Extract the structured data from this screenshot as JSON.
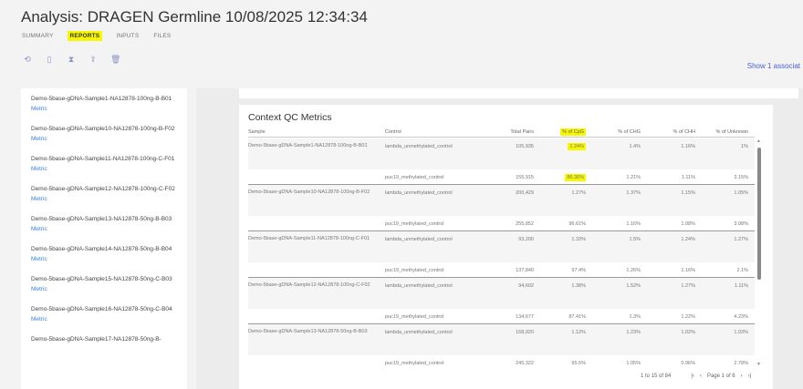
{
  "title": "Analysis: DRAGEN Germline 10/08/2025 12:34:34",
  "tabs": [
    {
      "label": "SUMMARY"
    },
    {
      "label": "REPORTS",
      "active": true
    },
    {
      "label": "INPUTS"
    },
    {
      "label": "FILES"
    }
  ],
  "toolbar_icons": [
    "rerun-icon",
    "file-icon",
    "hourglass-icon",
    "share-icon",
    "trash-icon"
  ],
  "show_link": "Show 1 associat",
  "sidebar": {
    "items": [
      {
        "name": "Demo-5base-gDNA-Sample1-NA12878-100ng-B-B01",
        "link": "Metric"
      },
      {
        "name": "Demo-5base-gDNA-Sample10-NA12878-100ng-B-F02",
        "link": "Metric"
      },
      {
        "name": "Demo-5base-gDNA-Sample11-NA12878-100ng-C-F01",
        "link": "Metric"
      },
      {
        "name": "Demo-5base-gDNA-Sample12-NA12878-100ng-C-F02",
        "link": "Metric"
      },
      {
        "name": "Demo-5base-gDNA-Sample13-NA12878-50ng-B-B03",
        "link": "Metric"
      },
      {
        "name": "Demo-5base-gDNA-Sample14-NA12878-50ng-B-B04",
        "link": "Metric"
      },
      {
        "name": "Demo-5base-gDNA-Sample15-NA12878-50ng-C-B03",
        "link": "Metric"
      },
      {
        "name": "Demo-5base-gDNA-Sample16-NA12878-50ng-C-B04",
        "link": "Metric"
      },
      {
        "name": "Demo-5base-gDNA-Sample17-NA12878-50ng-B-",
        "link": ""
      }
    ]
  },
  "table": {
    "title": "Context QC Metrics",
    "columns": [
      "Sample",
      "Control",
      "Total Pairs",
      "% of CpG",
      "% of CHG",
      "% of CHH",
      "% of Unknown"
    ],
    "rows": [
      {
        "sample": "Demo-5base-gDNA-Sample1-NA12878-100ng-B-B01",
        "control": "lambda_unmethylated_control",
        "total": "105,935",
        "cpg": "1.24%",
        "chg": "1.4%",
        "chh": "1.16%",
        "unk": "1%",
        "hl": true
      },
      {
        "sample": "",
        "control": "puc19_methylated_control",
        "total": "155,915",
        "cpg": "86.36%",
        "chg": "1.21%",
        "chh": "1.11%",
        "unk": "3.15%",
        "hl": true
      },
      {
        "sample": "Demo-5base-gDNA-Sample10-NA12878-100ng-B-F02",
        "control": "lambda_unmethylated_control",
        "total": "200,429",
        "cpg": "1.27%",
        "chg": "1.37%",
        "chh": "1.15%",
        "unk": "1.05%"
      },
      {
        "sample": "",
        "control": "puc19_methylated_control",
        "total": "255,852",
        "cpg": "96.61%",
        "chg": "1.16%",
        "chh": "1.08%",
        "unk": "3.08%"
      },
      {
        "sample": "Demo-5base-gDNA-Sample11-NA12878-100ng-C-F01",
        "control": "lambda_unmethylated_control",
        "total": "93,200",
        "cpg": "1.33%",
        "chg": "1.5%",
        "chh": "1.24%",
        "unk": "1.27%"
      },
      {
        "sample": "",
        "control": "puc19_methylated_control",
        "total": "137,840",
        "cpg": "97.4%",
        "chg": "1.26%",
        "chh": "1.16%",
        "unk": "2.1%"
      },
      {
        "sample": "Demo-5base-gDNA-Sample12-NA12878-100ng-C-F02",
        "control": "lambda_unmethylated_control",
        "total": "94,602",
        "cpg": "1.38%",
        "chg": "1.52%",
        "chh": "1.27%",
        "unk": "1.11%"
      },
      {
        "sample": "",
        "control": "puc19_methylated_control",
        "total": "134,677",
        "cpg": "87.41%",
        "chg": "1.3%",
        "chh": "1.22%",
        "unk": "4.23%"
      },
      {
        "sample": "Demo-5base-gDNA-Sample13-NA12878-50ng-B-B03",
        "control": "lambda_unmethylated_control",
        "total": "168,920",
        "cpg": "1.12%",
        "chg": "1.23%",
        "chh": "1.02%",
        "unk": "1.03%"
      },
      {
        "sample": "",
        "control": "puc19_methylated_control",
        "total": "245,322",
        "cpg": "95.5%",
        "chg": "1.05%",
        "chh": "0.96%",
        "unk": "2.78%"
      }
    ]
  },
  "pagination": {
    "range": "1 to 15 of 84",
    "page": "Page 1 of 6"
  },
  "colors": {
    "highlight": "#f7f700",
    "link": "#3b82d8"
  }
}
